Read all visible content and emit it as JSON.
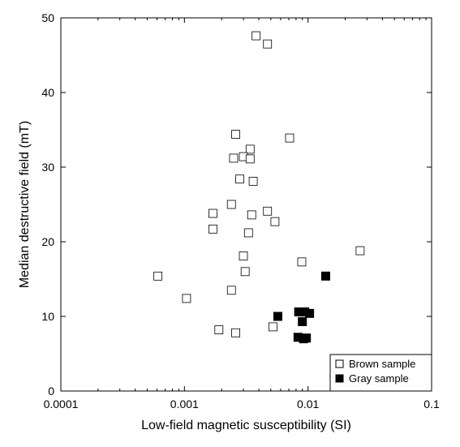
{
  "chart_data": {
    "type": "scatter",
    "xlabel": "Low-field magnetic susceptibility (SI)",
    "ylabel": "Median destructive field (mT)",
    "xscale": "log",
    "xlim": [
      0.0001,
      0.1
    ],
    "ylim": [
      0,
      50
    ],
    "xticks": [
      {
        "value": 0.0001,
        "label": "0.0001"
      },
      {
        "value": 0.001,
        "label": "0.001"
      },
      {
        "value": 0.01,
        "label": "0.01"
      },
      {
        "value": 0.1,
        "label": "0.1"
      }
    ],
    "yticks": [
      {
        "value": 0,
        "label": "0"
      },
      {
        "value": 10,
        "label": "10"
      },
      {
        "value": 20,
        "label": "20"
      },
      {
        "value": 30,
        "label": "30"
      },
      {
        "value": 40,
        "label": "40"
      },
      {
        "value": 50,
        "label": "50"
      }
    ],
    "grid": false,
    "legend_position": "bottom-right",
    "series": [
      {
        "name": "Brown sample",
        "marker": "open-square",
        "color": "#000000",
        "points": [
          {
            "x": 0.0038,
            "y": 47.6
          },
          {
            "x": 0.0047,
            "y": 46.5
          },
          {
            "x": 0.0026,
            "y": 34.4
          },
          {
            "x": 0.0071,
            "y": 33.9
          },
          {
            "x": 0.0034,
            "y": 32.4
          },
          {
            "x": 0.003,
            "y": 31.4
          },
          {
            "x": 0.0025,
            "y": 31.2
          },
          {
            "x": 0.0034,
            "y": 31.1
          },
          {
            "x": 0.0028,
            "y": 28.4
          },
          {
            "x": 0.0036,
            "y": 28.1
          },
          {
            "x": 0.0024,
            "y": 25.0
          },
          {
            "x": 0.0047,
            "y": 24.1
          },
          {
            "x": 0.0017,
            "y": 23.8
          },
          {
            "x": 0.0035,
            "y": 23.6
          },
          {
            "x": 0.0054,
            "y": 22.7
          },
          {
            "x": 0.0017,
            "y": 21.7
          },
          {
            "x": 0.0033,
            "y": 21.2
          },
          {
            "x": 0.0264,
            "y": 18.8
          },
          {
            "x": 0.003,
            "y": 18.1
          },
          {
            "x": 0.0089,
            "y": 17.3
          },
          {
            "x": 0.0031,
            "y": 16.0
          },
          {
            "x": 0.00061,
            "y": 15.4
          },
          {
            "x": 0.0024,
            "y": 13.5
          },
          {
            "x": 0.00104,
            "y": 12.4
          },
          {
            "x": 0.0052,
            "y": 8.6
          },
          {
            "x": 0.0019,
            "y": 8.2
          },
          {
            "x": 0.0026,
            "y": 7.8
          }
        ]
      },
      {
        "name": "Gray sample",
        "marker": "filled-square",
        "color": "#000000",
        "points": [
          {
            "x": 0.0139,
            "y": 15.4
          },
          {
            "x": 0.0084,
            "y": 10.6
          },
          {
            "x": 0.0094,
            "y": 10.6
          },
          {
            "x": 0.0103,
            "y": 10.4
          },
          {
            "x": 0.0057,
            "y": 10.0
          },
          {
            "x": 0.009,
            "y": 9.3
          },
          {
            "x": 0.0083,
            "y": 7.2
          },
          {
            "x": 0.0092,
            "y": 7.0
          },
          {
            "x": 0.0097,
            "y": 7.1
          }
        ]
      }
    ]
  }
}
